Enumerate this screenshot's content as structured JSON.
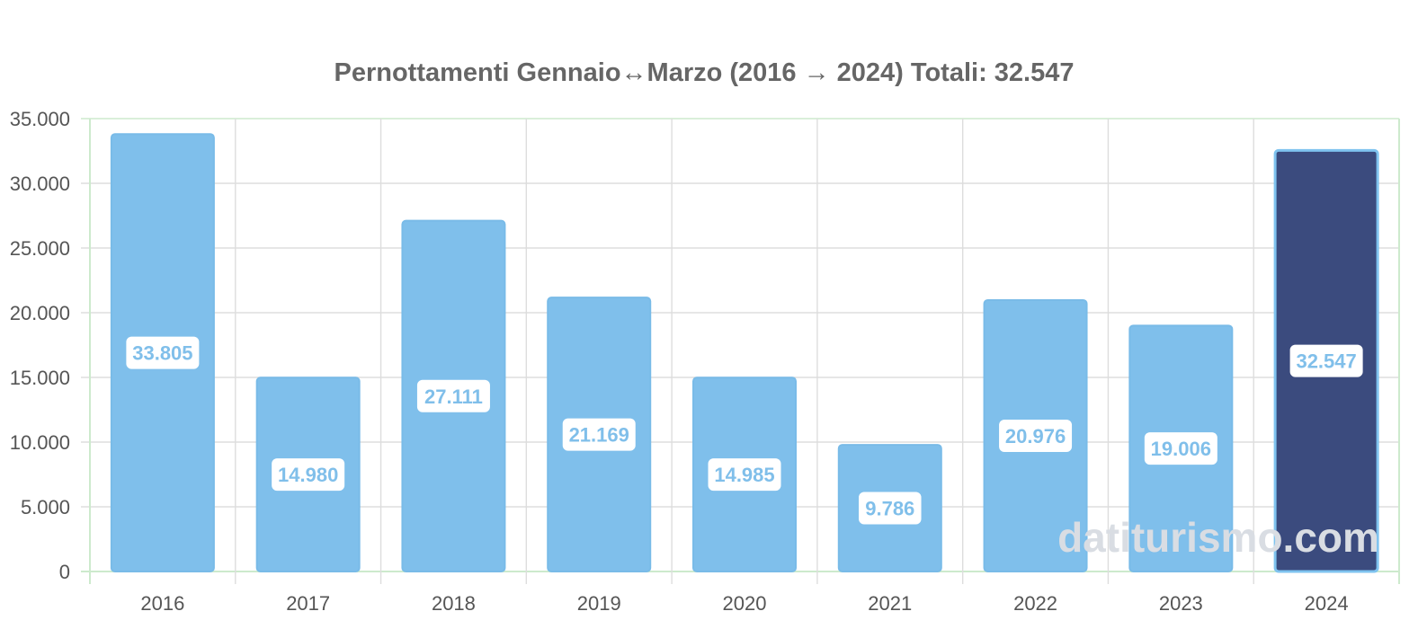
{
  "watermark": "datiturismo.com",
  "chart_data": {
    "type": "bar",
    "title": "Pernottamenti Gennaio↔Marzo (2016 → 2024) Totali: 32.547",
    "xlabel": "",
    "ylabel": "",
    "categories": [
      "2016",
      "2017",
      "2018",
      "2019",
      "2020",
      "2021",
      "2022",
      "2023",
      "2024"
    ],
    "values": [
      33805,
      14980,
      27111,
      21169,
      14985,
      9786,
      20976,
      19006,
      32547
    ],
    "data_labels": [
      "33.805",
      "14.980",
      "27.111",
      "21.169",
      "14.985",
      "9.786",
      "20.976",
      "19.006",
      "32.547"
    ],
    "ylim": [
      0,
      35000
    ],
    "yticks": [
      0,
      5000,
      10000,
      15000,
      20000,
      25000,
      30000,
      35000
    ],
    "ytick_labels": [
      "0",
      "5.000",
      "10.000",
      "15.000",
      "20.000",
      "25.000",
      "30.000",
      "35.000"
    ],
    "grid": true,
    "legend": "none",
    "colors": {
      "bar": "#7fbfeb",
      "bar_border": "#79bbe8",
      "highlight_bar": "#3b4b7e",
      "highlight_border": "#7fc3ef",
      "label_text": "#80bfea",
      "label_background": "#ffffff",
      "grid": "#dddddd",
      "axis": "#cdeacd"
    },
    "highlight_category": "2024"
  }
}
